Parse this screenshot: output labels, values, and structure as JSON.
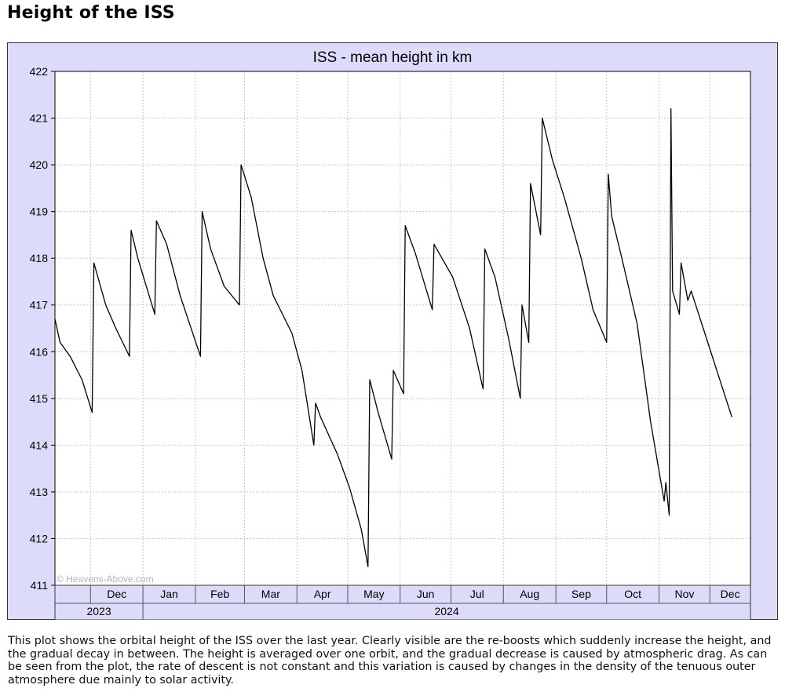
{
  "page": {
    "title": "Height of the ISS",
    "description": "This plot shows the orbital height of the ISS over the last year. Clearly visible are the re-boosts which suddenly increase the height, and the gradual decay in between. The height is averaged over one orbit, and the gradual decrease is caused by atmospheric drag. As can be seen from the plot, the rate of descent is not constant and this variation is caused by changes in the density of the tenuous outer atmosphere due mainly to solar activity."
  },
  "colors": {
    "frame_background": "#dcdcfa",
    "plot_background": "#ffffff",
    "grid": "#c8c8c8",
    "line": "#000000",
    "watermark": "#b4b4b4"
  },
  "chart_data": {
    "type": "line",
    "title": "ISS - mean height in km",
    "xlabel": "",
    "ylabel": "",
    "watermark": "© Heavens-Above.com",
    "ylim": [
      411,
      422
    ],
    "yticks": [
      411,
      412,
      413,
      414,
      415,
      416,
      417,
      418,
      419,
      420,
      421,
      422
    ],
    "xlim": [
      "2023-11-10",
      "2024-12-25"
    ],
    "month_ticks": [
      {
        "label": "Dec",
        "start": "2023-12-01",
        "end": "2024-01-01"
      },
      {
        "label": "Jan",
        "start": "2024-01-01",
        "end": "2024-02-01"
      },
      {
        "label": "Feb",
        "start": "2024-02-01",
        "end": "2024-03-01"
      },
      {
        "label": "Mar",
        "start": "2024-03-01",
        "end": "2024-04-01"
      },
      {
        "label": "Apr",
        "start": "2024-04-01",
        "end": "2024-05-01"
      },
      {
        "label": "May",
        "start": "2024-05-01",
        "end": "2024-06-01"
      },
      {
        "label": "Jun",
        "start": "2024-06-01",
        "end": "2024-07-01"
      },
      {
        "label": "Jul",
        "start": "2024-07-01",
        "end": "2024-08-01"
      },
      {
        "label": "Aug",
        "start": "2024-08-01",
        "end": "2024-09-01"
      },
      {
        "label": "Sep",
        "start": "2024-09-01",
        "end": "2024-10-01"
      },
      {
        "label": "Oct",
        "start": "2024-10-01",
        "end": "2024-11-01"
      },
      {
        "label": "Nov",
        "start": "2024-11-01",
        "end": "2024-12-01"
      },
      {
        "label": "Dec",
        "start": "2024-12-01",
        "end": "2024-12-25"
      }
    ],
    "year_labels": [
      {
        "label": "2023",
        "start": "2023-11-10",
        "end": "2024-01-01"
      },
      {
        "label": "2024",
        "start": "2024-01-01",
        "end": "2024-12-25"
      }
    ],
    "grid": true,
    "series": [
      {
        "values": [
          {
            "x": "2023-11-10",
            "y": 416.7
          },
          {
            "x": "2023-11-13",
            "y": 416.2
          },
          {
            "x": "2023-11-19",
            "y": 415.9
          },
          {
            "x": "2023-11-26",
            "y": 415.4
          },
          {
            "x": "2023-12-02",
            "y": 414.7
          },
          {
            "x": "2023-12-03",
            "y": 417.9
          },
          {
            "x": "2023-12-10",
            "y": 417.0
          },
          {
            "x": "2023-12-16",
            "y": 416.5
          },
          {
            "x": "2023-12-24",
            "y": 415.9
          },
          {
            "x": "2023-12-25",
            "y": 418.6
          },
          {
            "x": "2023-12-29",
            "y": 418.0
          },
          {
            "x": "2024-01-08",
            "y": 416.8
          },
          {
            "x": "2024-01-09",
            "y": 418.8
          },
          {
            "x": "2024-01-15",
            "y": 418.3
          },
          {
            "x": "2024-01-23",
            "y": 417.2
          },
          {
            "x": "2024-02-04",
            "y": 415.9
          },
          {
            "x": "2024-02-05",
            "y": 419.0
          },
          {
            "x": "2024-02-10",
            "y": 418.2
          },
          {
            "x": "2024-02-18",
            "y": 417.4
          },
          {
            "x": "2024-02-27",
            "y": 417.0
          },
          {
            "x": "2024-02-28",
            "y": 420.0
          },
          {
            "x": "2024-03-05",
            "y": 419.3
          },
          {
            "x": "2024-03-12",
            "y": 418.0
          },
          {
            "x": "2024-03-18",
            "y": 417.2
          },
          {
            "x": "2024-03-29",
            "y": 416.4
          },
          {
            "x": "2024-04-04",
            "y": 415.6
          },
          {
            "x": "2024-04-11",
            "y": 414.0
          },
          {
            "x": "2024-04-12",
            "y": 414.9
          },
          {
            "x": "2024-04-15",
            "y": 414.6
          },
          {
            "x": "2024-04-25",
            "y": 413.8
          },
          {
            "x": "2024-05-02",
            "y": 413.1
          },
          {
            "x": "2024-05-09",
            "y": 412.2
          },
          {
            "x": "2024-05-13",
            "y": 411.4
          },
          {
            "x": "2024-05-14",
            "y": 415.4
          },
          {
            "x": "2024-05-19",
            "y": 414.7
          },
          {
            "x": "2024-05-27",
            "y": 413.7
          },
          {
            "x": "2024-05-28",
            "y": 415.6
          },
          {
            "x": "2024-06-03",
            "y": 415.1
          },
          {
            "x": "2024-06-04",
            "y": 418.7
          },
          {
            "x": "2024-06-10",
            "y": 418.1
          },
          {
            "x": "2024-06-20",
            "y": 416.9
          },
          {
            "x": "2024-06-21",
            "y": 418.3
          },
          {
            "x": "2024-07-02",
            "y": 417.6
          },
          {
            "x": "2024-07-12",
            "y": 416.5
          },
          {
            "x": "2024-07-20",
            "y": 415.2
          },
          {
            "x": "2024-07-21",
            "y": 418.2
          },
          {
            "x": "2024-07-27",
            "y": 417.6
          },
          {
            "x": "2024-08-04",
            "y": 416.3
          },
          {
            "x": "2024-08-11",
            "y": 415.0
          },
          {
            "x": "2024-08-12",
            "y": 417.0
          },
          {
            "x": "2024-08-16",
            "y": 416.2
          },
          {
            "x": "2024-08-17",
            "y": 419.6
          },
          {
            "x": "2024-08-23",
            "y": 418.5
          },
          {
            "x": "2024-08-24",
            "y": 421.0
          },
          {
            "x": "2024-08-30",
            "y": 420.1
          },
          {
            "x": "2024-09-06",
            "y": 419.3
          },
          {
            "x": "2024-09-16",
            "y": 418.0
          },
          {
            "x": "2024-09-23",
            "y": 416.9
          },
          {
            "x": "2024-10-01",
            "y": 416.2
          },
          {
            "x": "2024-10-02",
            "y": 419.8
          },
          {
            "x": "2024-10-04",
            "y": 418.9
          },
          {
            "x": "2024-10-10",
            "y": 418.0
          },
          {
            "x": "2024-10-19",
            "y": 416.6
          },
          {
            "x": "2024-10-27",
            "y": 414.5
          },
          {
            "x": "2024-11-04",
            "y": 412.8
          },
          {
            "x": "2024-11-05",
            "y": 413.2
          },
          {
            "x": "2024-11-07",
            "y": 412.5
          },
          {
            "x": "2024-11-08",
            "y": 421.2
          },
          {
            "x": "2024-11-09",
            "y": 417.3
          },
          {
            "x": "2024-11-13",
            "y": 416.8
          },
          {
            "x": "2024-11-14",
            "y": 417.9
          },
          {
            "x": "2024-11-18",
            "y": 417.1
          },
          {
            "x": "2024-11-20",
            "y": 417.3
          },
          {
            "x": "2024-11-28",
            "y": 416.4
          },
          {
            "x": "2024-12-06",
            "y": 415.5
          },
          {
            "x": "2024-12-14",
            "y": 414.6
          }
        ]
      }
    ]
  }
}
